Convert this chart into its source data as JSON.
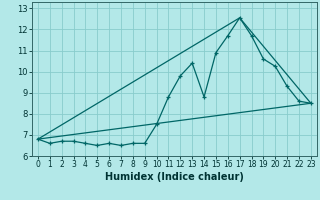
{
  "title": "",
  "xlabel": "Humidex (Indice chaleur)",
  "background_color": "#b3e8e8",
  "grid_color": "#88cccc",
  "line_color": "#006666",
  "xlim": [
    -0.5,
    23.5
  ],
  "ylim": [
    6,
    13.3
  ],
  "yticks": [
    6,
    7,
    8,
    9,
    10,
    11,
    12,
    13
  ],
  "xticks": [
    0,
    1,
    2,
    3,
    4,
    5,
    6,
    7,
    8,
    9,
    10,
    11,
    12,
    13,
    14,
    15,
    16,
    17,
    18,
    19,
    20,
    21,
    22,
    23
  ],
  "line1_x": [
    0,
    1,
    2,
    3,
    4,
    5,
    6,
    7,
    8,
    9,
    10,
    11,
    12,
    13,
    14,
    15,
    16,
    17,
    18,
    19,
    20,
    21,
    22,
    23
  ],
  "line1_y": [
    6.8,
    6.6,
    6.7,
    6.7,
    6.6,
    6.5,
    6.6,
    6.5,
    6.6,
    6.6,
    7.5,
    8.8,
    9.8,
    10.4,
    8.8,
    10.9,
    11.7,
    12.55,
    11.7,
    10.6,
    10.25,
    9.3,
    8.6,
    8.5
  ],
  "line2_x": [
    0,
    23
  ],
  "line2_y": [
    6.8,
    8.5
  ],
  "line3_x": [
    0,
    17,
    23
  ],
  "line3_y": [
    6.8,
    12.55,
    8.5
  ],
  "xlabel_fontsize": 7,
  "tick_fontsize": 5.5,
  "ytick_fontsize": 6
}
